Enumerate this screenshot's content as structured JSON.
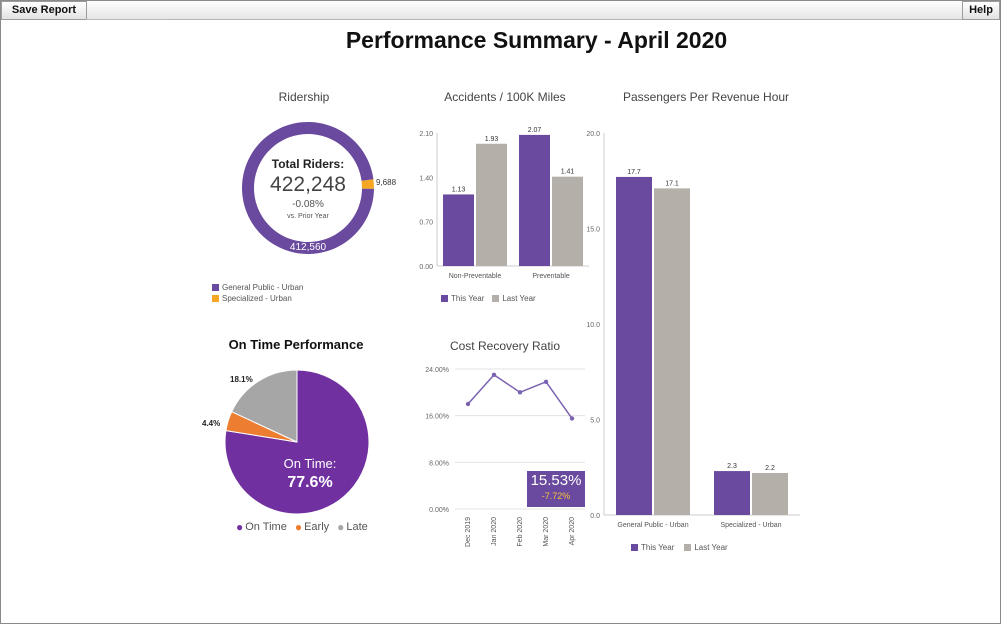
{
  "toolbar": {
    "save_label": "Save Report",
    "help_label": "Help"
  },
  "page": {
    "title": "Performance Summary - April 2020"
  },
  "colors": {
    "purple": "#6a4a9e",
    "gray": "#b5afa9",
    "orange": "#f5a623",
    "ontime": "#7030a0",
    "early": "#ed7d31",
    "late": "#a6a6a6"
  },
  "chart_data": [
    {
      "id": "ridership",
      "type": "pie",
      "title": "Ridership",
      "center": {
        "label": "Total Riders:",
        "value": "422,248",
        "change": "-0.08%",
        "sub": "vs. Prior Year"
      },
      "categories": [
        "General Public - Urban",
        "Specialized - Urban"
      ],
      "values": [
        412560,
        9688
      ],
      "labels": [
        "412,560",
        "9,688"
      ]
    },
    {
      "id": "accidents",
      "type": "bar",
      "title": "Accidents / 100K Miles",
      "categories": [
        "Non-Preventable",
        "Preventable"
      ],
      "series": [
        {
          "name": "This Year",
          "values": [
            1.13,
            2.07
          ],
          "labels": [
            "1.13",
            "2.07"
          ]
        },
        {
          "name": "Last Year",
          "values": [
            1.93,
            1.41
          ],
          "labels": [
            "1.93",
            "1.41"
          ]
        }
      ],
      "yticks": [
        "0.00",
        "0.70",
        "1.40",
        "2.10"
      ],
      "ylim": [
        0,
        2.1
      ]
    },
    {
      "id": "pph",
      "type": "bar",
      "title": "Passengers Per Revenue Hour",
      "categories": [
        "General Public - Urban",
        "Specialized - Urban"
      ],
      "series": [
        {
          "name": "This Year",
          "values": [
            17.7,
            2.3
          ],
          "labels": [
            "17.7",
            "2.3"
          ]
        },
        {
          "name": "Last Year",
          "values": [
            17.1,
            2.2
          ],
          "labels": [
            "17.1",
            "2.2"
          ]
        }
      ],
      "yticks": [
        "0.0",
        "5.0",
        "10.0",
        "15.0",
        "20.0"
      ],
      "ylim": [
        0,
        20
      ]
    },
    {
      "id": "ontime",
      "type": "pie",
      "title": "On Time Performance",
      "categories": [
        "On Time",
        "Early",
        "Late"
      ],
      "values": [
        77.6,
        4.4,
        18.1
      ],
      "labels": [
        "On Time:",
        "4.4%",
        "18.1%"
      ],
      "center_value": "77.6%"
    },
    {
      "id": "cost",
      "type": "line",
      "title": "Cost Recovery Ratio",
      "x": [
        "Dec 2019",
        "Jan 2020",
        "Feb 2020",
        "Mar 2020",
        "Apr 2020"
      ],
      "values": [
        18.0,
        23.0,
        20.0,
        21.8,
        15.53
      ],
      "yticks": [
        "0.00%",
        "8.00%",
        "16.00%",
        "24.00%"
      ],
      "ylim": [
        0,
        24
      ],
      "kpi": {
        "value": "15.53%",
        "change": "-7.72%"
      }
    }
  ]
}
